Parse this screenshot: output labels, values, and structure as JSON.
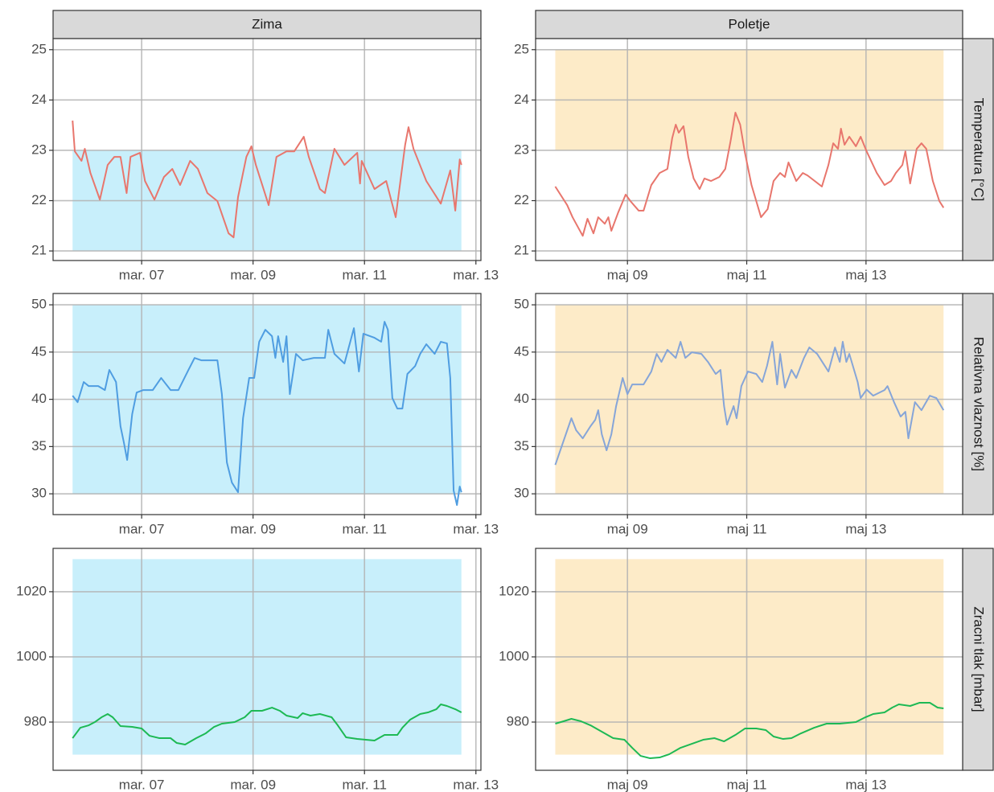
{
  "facets": {
    "columns": [
      "Zima",
      "Poletje"
    ],
    "rows": [
      "Temperatura [°C]",
      "Relativna vlaznost [%]",
      "Zracni tlak [mbar]"
    ]
  },
  "chart_data": [
    {
      "type": "line",
      "color": "#e8766d",
      "grid": true,
      "band": {
        "xmin": 5.76,
        "xmax": 12.74,
        "ymin": 21,
        "ymax": 23,
        "color": "#c8effb"
      },
      "xlim": [
        5.41,
        13.09
      ],
      "ylim": [
        20.81,
        25.22
      ],
      "xticks": [
        {
          "value": 7,
          "label": "mar. 07"
        },
        {
          "value": 9,
          "label": "mar. 09"
        },
        {
          "value": 11,
          "label": "mar. 11"
        },
        {
          "value": 13,
          "label": "mar. 13"
        }
      ],
      "yticks": [
        21,
        22,
        23,
        24,
        25
      ],
      "x": [
        5.76,
        5.8,
        5.92,
        5.98,
        6.08,
        6.25,
        6.39,
        6.51,
        6.62,
        6.73,
        6.8,
        6.97,
        7.06,
        7.23,
        7.4,
        7.55,
        7.69,
        7.87,
        8.01,
        8.18,
        8.36,
        8.56,
        8.65,
        8.73,
        8.88,
        8.97,
        9.05,
        9.28,
        9.42,
        9.6,
        9.74,
        9.91,
        10.0,
        10.2,
        10.29,
        10.46,
        10.64,
        10.87,
        10.92,
        10.95,
        11.18,
        11.39,
        11.56,
        11.73,
        11.79,
        11.88,
        12.11,
        12.37,
        12.54,
        12.63,
        12.71,
        12.74
      ],
      "values": [
        23.59,
        22.98,
        22.79,
        23.03,
        22.55,
        22.02,
        22.71,
        22.87,
        22.87,
        22.15,
        22.87,
        22.95,
        22.39,
        22.02,
        22.47,
        22.63,
        22.31,
        22.79,
        22.63,
        22.15,
        21.99,
        21.35,
        21.27,
        22.07,
        22.87,
        23.08,
        22.71,
        21.91,
        22.87,
        22.98,
        22.98,
        23.27,
        22.87,
        22.23,
        22.15,
        23.03,
        22.71,
        22.95,
        22.34,
        22.79,
        22.23,
        22.39,
        21.67,
        23.11,
        23.46,
        23.03,
        22.39,
        21.94,
        22.6,
        21.8,
        22.82,
        22.71
      ]
    },
    {
      "type": "line",
      "color": "#e8766d",
      "grid": true,
      "band": {
        "xmin": 7.79,
        "xmax": 14.3,
        "ymin": 23,
        "ymax": 25,
        "color": "#fdebc8"
      },
      "xlim": [
        7.46,
        14.62
      ],
      "ylim": [
        20.81,
        25.22
      ],
      "xticks": [
        {
          "value": 9,
          "label": "maj 09"
        },
        {
          "value": 11,
          "label": "maj 11"
        },
        {
          "value": 13,
          "label": "maj 13"
        }
      ],
      "yticks": [
        21,
        22,
        23,
        24,
        25
      ],
      "x": [
        7.79,
        7.99,
        8.08,
        8.25,
        8.33,
        8.43,
        8.51,
        8.62,
        8.68,
        8.73,
        8.84,
        8.97,
        9.05,
        9.19,
        9.27,
        9.4,
        9.54,
        9.67,
        9.75,
        9.81,
        9.86,
        9.94,
        10.02,
        10.11,
        10.21,
        10.29,
        10.4,
        10.54,
        10.64,
        10.73,
        10.81,
        10.89,
        10.97,
        11.08,
        11.24,
        11.35,
        11.45,
        11.56,
        11.64,
        11.7,
        11.83,
        11.94,
        12.02,
        12.26,
        12.37,
        12.45,
        12.53,
        12.58,
        12.64,
        12.72,
        12.83,
        12.91,
        13.01,
        13.18,
        13.31,
        13.42,
        13.5,
        13.61,
        13.66,
        13.74,
        13.85,
        13.93,
        14.01,
        14.12,
        14.23,
        14.3
      ],
      "values": [
        22.28,
        21.91,
        21.67,
        21.3,
        21.64,
        21.35,
        21.67,
        21.54,
        21.67,
        21.4,
        21.75,
        22.12,
        21.99,
        21.8,
        21.8,
        22.31,
        22.55,
        22.63,
        23.24,
        23.51,
        23.35,
        23.48,
        22.87,
        22.44,
        22.23,
        22.44,
        22.39,
        22.47,
        22.63,
        23.19,
        23.75,
        23.51,
        22.95,
        22.31,
        21.67,
        21.83,
        22.39,
        22.55,
        22.47,
        22.76,
        22.39,
        22.55,
        22.5,
        22.28,
        22.71,
        23.14,
        23.03,
        23.43,
        23.11,
        23.27,
        23.08,
        23.27,
        22.98,
        22.55,
        22.31,
        22.39,
        22.55,
        22.71,
        22.98,
        22.34,
        23.03,
        23.14,
        23.03,
        22.39,
        21.99,
        21.86
      ]
    },
    {
      "type": "line",
      "color": "#4f9de1",
      "grid": true,
      "band": {
        "xmin": 5.76,
        "xmax": 12.74,
        "ymin": 30,
        "ymax": 50,
        "color": "#c8effb"
      },
      "xlim": [
        5.41,
        13.09
      ],
      "ylim": [
        27.8,
        51.2
      ],
      "xticks": [
        {
          "value": 7,
          "label": "mar. 07"
        },
        {
          "value": 9,
          "label": "mar. 09"
        },
        {
          "value": 11,
          "label": "mar. 11"
        },
        {
          "value": 13,
          "label": "mar. 13"
        }
      ],
      "yticks": [
        30,
        35,
        40,
        45,
        50
      ],
      "x": [
        5.76,
        5.85,
        5.96,
        6.05,
        6.22,
        6.34,
        6.42,
        6.54,
        6.62,
        6.68,
        6.74,
        6.83,
        6.91,
        7.03,
        7.2,
        7.35,
        7.52,
        7.66,
        7.84,
        7.95,
        8.07,
        8.36,
        8.44,
        8.53,
        8.62,
        8.73,
        8.82,
        8.93,
        9.02,
        9.11,
        9.22,
        9.34,
        9.4,
        9.45,
        9.54,
        9.6,
        9.66,
        9.77,
        9.89,
        10.09,
        10.29,
        10.35,
        10.46,
        10.64,
        10.81,
        10.9,
        10.98,
        11.18,
        11.3,
        11.36,
        11.42,
        11.5,
        11.59,
        11.68,
        11.77,
        11.91,
        12.0,
        12.11,
        12.26,
        12.37,
        12.48,
        12.54,
        12.6,
        12.66,
        12.71,
        12.74
      ],
      "values": [
        40.38,
        39.7,
        41.83,
        41.4,
        41.4,
        40.98,
        43.11,
        41.83,
        37.15,
        35.45,
        33.58,
        38.43,
        40.72,
        40.98,
        40.98,
        42.26,
        40.98,
        40.98,
        43.11,
        44.38,
        44.13,
        44.13,
        40.55,
        33.32,
        31.19,
        30.17,
        38.0,
        42.26,
        42.26,
        46.09,
        47.36,
        46.68,
        44.38,
        46.68,
        43.96,
        46.68,
        40.55,
        44.81,
        44.13,
        44.38,
        44.38,
        47.36,
        44.81,
        43.79,
        47.53,
        42.94,
        46.94,
        46.51,
        46.09,
        48.21,
        47.36,
        40.13,
        39.02,
        39.02,
        42.68,
        43.53,
        44.81,
        45.83,
        44.81,
        46.09,
        45.92,
        42.26,
        30.34,
        28.81,
        30.77,
        30.17
      ]
    },
    {
      "type": "line",
      "color": "#86a5d8",
      "grid": true,
      "band": {
        "xmin": 7.79,
        "xmax": 14.3,
        "ymin": 30,
        "ymax": 50,
        "color": "#fdebc8"
      },
      "xlim": [
        7.46,
        14.62
      ],
      "ylim": [
        27.8,
        51.2
      ],
      "xticks": [
        {
          "value": 9,
          "label": "maj 09"
        },
        {
          "value": 11,
          "label": "maj 11"
        },
        {
          "value": 13,
          "label": "maj 13"
        }
      ],
      "yticks": [
        30,
        35,
        40,
        45,
        50
      ],
      "x": [
        7.79,
        7.93,
        8.06,
        8.14,
        8.25,
        8.38,
        8.46,
        8.51,
        8.57,
        8.65,
        8.73,
        8.81,
        8.92,
        9.0,
        9.08,
        9.27,
        9.4,
        9.49,
        9.57,
        9.67,
        9.81,
        9.89,
        9.97,
        10.08,
        10.24,
        10.35,
        10.48,
        10.56,
        10.62,
        10.67,
        10.78,
        10.83,
        10.91,
        11.02,
        11.16,
        11.26,
        11.34,
        11.43,
        11.51,
        11.56,
        11.64,
        11.75,
        11.83,
        11.96,
        12.05,
        12.18,
        12.37,
        12.48,
        12.56,
        12.61,
        12.67,
        12.72,
        12.86,
        12.91,
        13.01,
        13.12,
        13.31,
        13.36,
        13.47,
        13.58,
        13.66,
        13.71,
        13.82,
        13.93,
        14.07,
        14.18,
        14.3
      ],
      "values": [
        33.06,
        35.62,
        38.0,
        36.72,
        35.87,
        37.15,
        37.83,
        38.85,
        36.3,
        34.6,
        36.3,
        39.28,
        42.26,
        40.55,
        41.57,
        41.57,
        42.94,
        44.81,
        43.96,
        45.24,
        44.38,
        46.09,
        44.38,
        44.98,
        44.81,
        43.96,
        42.68,
        43.11,
        39.28,
        37.32,
        39.28,
        38.0,
        41.4,
        42.94,
        42.68,
        41.83,
        43.53,
        46.09,
        41.57,
        44.81,
        41.23,
        43.11,
        42.26,
        44.38,
        45.49,
        44.81,
        42.94,
        45.49,
        43.96,
        46.09,
        43.96,
        44.81,
        41.83,
        40.13,
        41.03,
        40.38,
        40.98,
        41.4,
        39.7,
        38.17,
        38.68,
        35.87,
        39.7,
        38.85,
        40.38,
        40.13,
        38.85
      ]
    },
    {
      "type": "line",
      "color": "#1db954",
      "grid": true,
      "band": {
        "xmin": 5.76,
        "xmax": 12.74,
        "ymin": 970,
        "ymax": 1030,
        "color": "#c8effb"
      },
      "xlim": [
        5.41,
        13.09
      ],
      "ylim": [
        965.2,
        1033.3
      ],
      "xticks": [
        {
          "value": 7,
          "label": "mar. 07"
        },
        {
          "value": 9,
          "label": "mar. 09"
        },
        {
          "value": 11,
          "label": "mar. 11"
        },
        {
          "value": 13,
          "label": "mar. 13"
        }
      ],
      "yticks": [
        980,
        1000,
        1020
      ],
      "x": [
        5.76,
        5.9,
        6.05,
        6.16,
        6.28,
        6.39,
        6.48,
        6.62,
        6.83,
        7.0,
        7.14,
        7.32,
        7.52,
        7.63,
        7.78,
        7.98,
        8.15,
        8.3,
        8.44,
        8.67,
        8.85,
        8.97,
        9.16,
        9.34,
        9.48,
        9.6,
        9.8,
        9.89,
        10.03,
        10.2,
        10.41,
        10.52,
        10.67,
        10.87,
        11.18,
        11.36,
        11.59,
        11.68,
        11.82,
        12.0,
        12.14,
        12.29,
        12.37,
        12.48,
        12.63,
        12.74
      ],
      "values": [
        975.06,
        978.27,
        979.01,
        980.0,
        981.48,
        982.47,
        981.48,
        978.77,
        978.52,
        978.02,
        975.8,
        975.06,
        975.06,
        973.58,
        973.09,
        975.06,
        976.54,
        978.52,
        979.51,
        980.0,
        981.48,
        983.46,
        983.46,
        984.44,
        983.46,
        981.98,
        981.23,
        982.72,
        981.98,
        982.47,
        981.48,
        979.01,
        975.31,
        974.81,
        974.32,
        976.05,
        976.05,
        978.27,
        980.74,
        982.47,
        982.96,
        983.95,
        985.43,
        984.94,
        983.95,
        982.96
      ]
    },
    {
      "type": "line",
      "color": "#1db954",
      "grid": true,
      "band": {
        "xmin": 7.79,
        "xmax": 14.3,
        "ymin": 970,
        "ymax": 1030,
        "color": "#fdebc8"
      },
      "xlim": [
        7.46,
        14.62
      ],
      "ylim": [
        965.2,
        1033.3
      ],
      "xticks": [
        {
          "value": 9,
          "label": "maj 09"
        },
        {
          "value": 11,
          "label": "maj 11"
        },
        {
          "value": 13,
          "label": "maj 13"
        }
      ],
      "yticks": [
        980,
        1000,
        1020
      ],
      "x": [
        7.79,
        7.93,
        8.06,
        8.22,
        8.38,
        8.57,
        8.76,
        8.95,
        9.08,
        9.22,
        9.38,
        9.54,
        9.7,
        9.89,
        10.08,
        10.27,
        10.46,
        10.62,
        10.81,
        10.97,
        11.16,
        11.32,
        11.45,
        11.61,
        11.75,
        11.91,
        12.13,
        12.34,
        12.56,
        12.83,
        12.99,
        13.12,
        13.31,
        13.44,
        13.55,
        13.74,
        13.9,
        14.07,
        14.2,
        14.3
      ],
      "values": [
        979.51,
        980.25,
        980.99,
        980.25,
        979.01,
        977.04,
        975.06,
        974.57,
        972.1,
        969.63,
        968.89,
        969.14,
        970.12,
        972.1,
        973.33,
        974.57,
        975.06,
        974.07,
        976.05,
        978.02,
        978.02,
        977.53,
        975.56,
        974.81,
        975.06,
        976.54,
        978.27,
        979.51,
        979.51,
        980.0,
        981.48,
        982.47,
        982.96,
        984.44,
        985.43,
        984.94,
        985.93,
        985.93,
        984.44,
        984.2
      ]
    }
  ]
}
